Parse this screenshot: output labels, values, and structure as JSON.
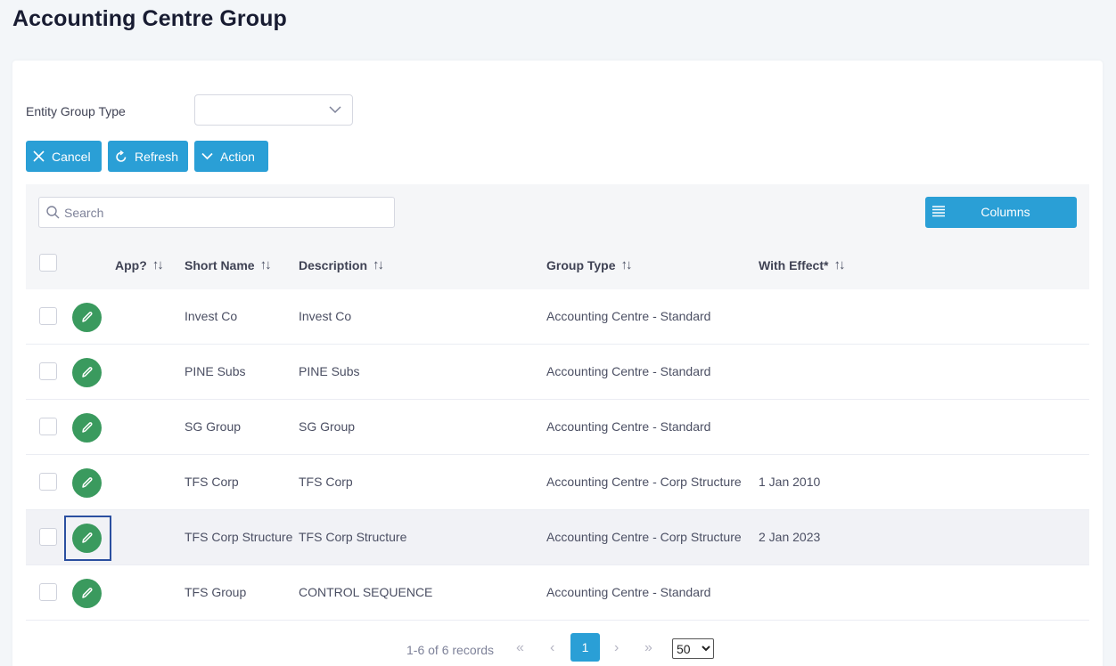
{
  "page": {
    "title": "Accounting Centre Group"
  },
  "filter": {
    "label": "Entity Group Type",
    "value": ""
  },
  "actions": {
    "cancel": "Cancel",
    "refresh": "Refresh",
    "action": "Action"
  },
  "grid": {
    "search_placeholder": "Search",
    "columns_label": "Columns",
    "headers": {
      "app": "App?",
      "short_name": "Short Name",
      "description": "Description",
      "group_type": "Group Type",
      "with_effect": "With Effect*"
    },
    "rows": [
      {
        "short_name": "Invest Co",
        "description": "Invest Co",
        "group_type": "Accounting Centre - Standard",
        "with_effect": ""
      },
      {
        "short_name": "PINE Subs",
        "description": "PINE Subs",
        "group_type": "Accounting Centre - Standard",
        "with_effect": ""
      },
      {
        "short_name": "SG Group",
        "description": "SG Group",
        "group_type": "Accounting Centre - Standard",
        "with_effect": ""
      },
      {
        "short_name": "TFS Corp",
        "description": "TFS Corp",
        "group_type": "Accounting Centre - Corp Structure",
        "with_effect": "1 Jan 2010"
      },
      {
        "short_name": "TFS Corp Structure",
        "description": "TFS Corp Structure",
        "group_type": "Accounting Centre - Corp Structure",
        "with_effect": "2 Jan 2023"
      },
      {
        "short_name": "TFS Group",
        "description": "CONTROL SEQUENCE",
        "group_type": "Accounting Centre - Standard",
        "with_effect": ""
      }
    ]
  },
  "pagination": {
    "records": "1-6 of 6 records",
    "current_page": "1",
    "page_size": "50",
    "first": "«",
    "prev": "‹",
    "next": "›",
    "last": "»"
  },
  "colors": {
    "primary": "#2a9fd6",
    "edit": "#3a9a5e",
    "focus": "#2b4fa0"
  },
  "icons": {
    "cancel": "close-icon",
    "refresh": "refresh-icon",
    "action": "chevron-down-icon",
    "search": "search-icon",
    "columns": "list-icon",
    "edit": "pencil-icon"
  }
}
